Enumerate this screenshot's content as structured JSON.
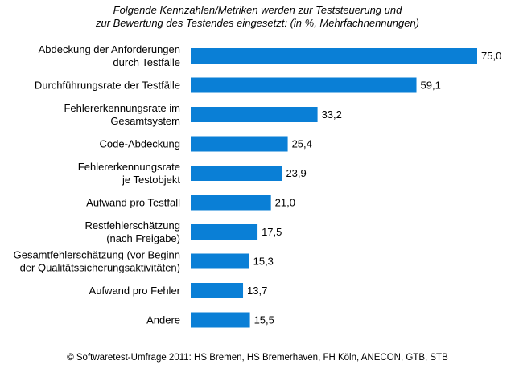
{
  "chart_data": {
    "type": "bar",
    "orientation": "horizontal",
    "title_lines": [
      "Folgende Kennzahlen/Metriken werden zur Teststeuerung und",
      "zur Bewertung des Testendes eingesetzt: (in %, Mehrfachnennungen)"
    ],
    "categories": [
      [
        "Abdeckung der Anforderungen",
        "durch Testfälle"
      ],
      [
        "Durchführungsrate der Testfälle"
      ],
      [
        "Fehlererkennungsrate im",
        "Gesamtsystem"
      ],
      [
        "Code-Abdeckung"
      ],
      [
        "Fehlererkennungsrate",
        "je Testobjekt"
      ],
      [
        "Aufwand pro Testfall"
      ],
      [
        "Restfehlerschätzung",
        "(nach Freigabe)"
      ],
      [
        "Gesamtfehlerschätzung (vor Beginn",
        "der Qualitätssicherungsaktivitäten)"
      ],
      [
        "Aufwand pro Fehler"
      ],
      [
        "Andere"
      ]
    ],
    "values": [
      75.0,
      59.1,
      33.2,
      25.4,
      23.9,
      21.0,
      17.5,
      15.3,
      13.7,
      15.5
    ],
    "value_labels": [
      "75,0",
      "59,1",
      "33,2",
      "25,4",
      "23,9",
      "21,0",
      "17,5",
      "15,3",
      "13,7",
      "15,5"
    ],
    "xlim": [
      0,
      75
    ],
    "bar_color": "#0a7fd6",
    "grid": false,
    "legend": "none"
  },
  "footer": {
    "source": "© Softwaretest-Umfrage 2011: HS Bremen, HS Bremerhaven, FH Köln, ANECON, GTB, STB"
  }
}
